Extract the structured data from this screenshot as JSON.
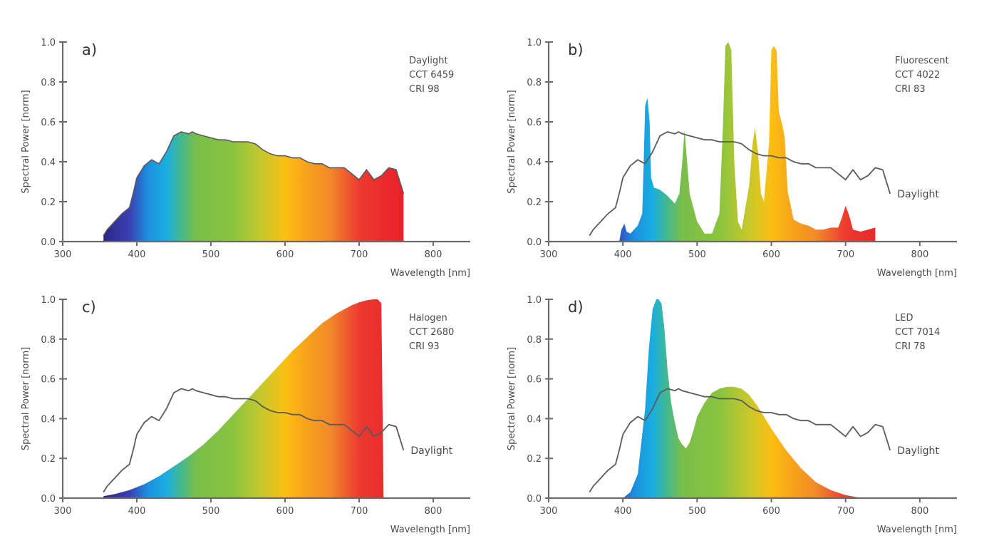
{
  "chart_data": [
    {
      "type": "area",
      "panel_label": "a)",
      "annotation": [
        "Daylight",
        "CCT 6459",
        "CRI 98"
      ],
      "xlabel": "Wavelength [nm]",
      "ylabel": "Spectral Power [norm]",
      "xlim": [
        300,
        850
      ],
      "ylim": [
        0,
        1
      ],
      "xticks": [
        "300",
        "400",
        "500",
        "600",
        "700",
        "800"
      ],
      "yticks": [
        "0.0",
        "0.2",
        "0.4",
        "0.6",
        "0.8",
        "1.0"
      ],
      "reference_label": "",
      "series": [
        {
          "name": "Daylight",
          "x": [
            355,
            360,
            370,
            380,
            390,
            395,
            400,
            410,
            420,
            430,
            440,
            450,
            460,
            470,
            475,
            480,
            490,
            500,
            510,
            520,
            530,
            540,
            550,
            560,
            570,
            580,
            590,
            600,
            610,
            620,
            630,
            640,
            650,
            660,
            670,
            680,
            690,
            700,
            710,
            720,
            730,
            740,
            750,
            755,
            760
          ],
          "y": [
            0.03,
            0.06,
            0.1,
            0.14,
            0.17,
            0.24,
            0.32,
            0.38,
            0.41,
            0.39,
            0.45,
            0.53,
            0.55,
            0.54,
            0.55,
            0.54,
            0.53,
            0.52,
            0.51,
            0.51,
            0.5,
            0.5,
            0.5,
            0.49,
            0.46,
            0.44,
            0.43,
            0.43,
            0.42,
            0.42,
            0.4,
            0.39,
            0.39,
            0.37,
            0.37,
            0.37,
            0.34,
            0.31,
            0.36,
            0.31,
            0.33,
            0.37,
            0.36,
            0.3,
            0.24
          ]
        }
      ]
    },
    {
      "type": "area",
      "panel_label": "b)",
      "annotation": [
        "Fluorescent",
        "CCT 4022",
        "CRI 83"
      ],
      "xlabel": "Wavelength [nm]",
      "ylabel": "Spectral Power [norm]",
      "xlim": [
        300,
        850
      ],
      "ylim": [
        0,
        1
      ],
      "xticks": [
        "300",
        "400",
        "500",
        "600",
        "700",
        "800"
      ],
      "yticks": [
        "0.0",
        "0.2",
        "0.4",
        "0.6",
        "0.8",
        "1.0"
      ],
      "reference_label": "Daylight",
      "series": [
        {
          "name": "Fluorescent",
          "x": [
            395,
            398,
            402,
            405,
            410,
            420,
            426,
            428,
            430,
            433,
            436,
            438,
            442,
            450,
            460,
            470,
            476,
            480,
            483,
            486,
            490,
            500,
            510,
            520,
            530,
            535,
            538,
            542,
            546,
            550,
            555,
            560,
            570,
            575,
            578,
            582,
            586,
            590,
            597,
            600,
            603,
            607,
            610,
            615,
            618,
            622,
            630,
            640,
            650,
            660,
            670,
            680,
            690,
            695,
            700,
            705,
            710,
            720,
            730,
            740
          ],
          "y": [
            0.0,
            0.06,
            0.09,
            0.05,
            0.04,
            0.08,
            0.14,
            0.4,
            0.68,
            0.72,
            0.6,
            0.32,
            0.27,
            0.26,
            0.23,
            0.19,
            0.24,
            0.4,
            0.56,
            0.42,
            0.24,
            0.1,
            0.04,
            0.04,
            0.14,
            0.6,
            0.98,
            1.0,
            0.96,
            0.4,
            0.1,
            0.06,
            0.28,
            0.5,
            0.57,
            0.45,
            0.24,
            0.2,
            0.5,
            0.96,
            0.98,
            0.96,
            0.65,
            0.58,
            0.52,
            0.25,
            0.11,
            0.09,
            0.08,
            0.06,
            0.06,
            0.07,
            0.07,
            0.12,
            0.18,
            0.13,
            0.06,
            0.05,
            0.06,
            0.07
          ]
        },
        {
          "name": "Daylight",
          "x": [
            355,
            360,
            370,
            380,
            390,
            395,
            400,
            410,
            420,
            430,
            440,
            450,
            460,
            470,
            475,
            480,
            490,
            500,
            510,
            520,
            530,
            540,
            550,
            560,
            570,
            580,
            590,
            600,
            610,
            620,
            630,
            640,
            650,
            660,
            670,
            680,
            690,
            700,
            710,
            720,
            730,
            740,
            750,
            755,
            760
          ],
          "y": [
            0.03,
            0.06,
            0.1,
            0.14,
            0.17,
            0.24,
            0.32,
            0.38,
            0.41,
            0.39,
            0.45,
            0.53,
            0.55,
            0.54,
            0.55,
            0.54,
            0.53,
            0.52,
            0.51,
            0.51,
            0.5,
            0.5,
            0.5,
            0.49,
            0.46,
            0.44,
            0.43,
            0.43,
            0.42,
            0.42,
            0.4,
            0.39,
            0.39,
            0.37,
            0.37,
            0.37,
            0.34,
            0.31,
            0.36,
            0.31,
            0.33,
            0.37,
            0.36,
            0.3,
            0.24
          ]
        }
      ]
    },
    {
      "type": "area",
      "panel_label": "c)",
      "annotation": [
        "Halogen",
        "CCT 2680",
        "CRI 93"
      ],
      "xlabel": "Wavelength [nm]",
      "ylabel": "Spectral Power [norm]",
      "xlim": [
        300,
        850
      ],
      "ylim": [
        0,
        1
      ],
      "xticks": [
        "300",
        "400",
        "500",
        "600",
        "700",
        "800"
      ],
      "yticks": [
        "0.0",
        "0.2",
        "0.4",
        "0.6",
        "0.8",
        "1.0"
      ],
      "reference_label": "Daylight",
      "series": [
        {
          "name": "Halogen",
          "x": [
            355,
            370,
            390,
            410,
            430,
            450,
            470,
            490,
            510,
            530,
            550,
            570,
            590,
            610,
            630,
            650,
            670,
            690,
            700,
            710,
            720,
            725,
            730,
            733
          ],
          "y": [
            0.01,
            0.02,
            0.04,
            0.07,
            0.11,
            0.16,
            0.21,
            0.27,
            0.34,
            0.42,
            0.5,
            0.58,
            0.66,
            0.74,
            0.81,
            0.88,
            0.93,
            0.97,
            0.985,
            0.995,
            1.0,
            1.0,
            0.98,
            0.0
          ]
        },
        {
          "name": "Daylight",
          "x": [
            355,
            360,
            370,
            380,
            390,
            395,
            400,
            410,
            420,
            430,
            440,
            450,
            460,
            470,
            475,
            480,
            490,
            500,
            510,
            520,
            530,
            540,
            550,
            560,
            570,
            580,
            590,
            600,
            610,
            620,
            630,
            640,
            650,
            660,
            670,
            680,
            690,
            700,
            710,
            720,
            730,
            740,
            750,
            755,
            760
          ],
          "y": [
            0.03,
            0.06,
            0.1,
            0.14,
            0.17,
            0.24,
            0.32,
            0.38,
            0.41,
            0.39,
            0.45,
            0.53,
            0.55,
            0.54,
            0.55,
            0.54,
            0.53,
            0.52,
            0.51,
            0.51,
            0.5,
            0.5,
            0.5,
            0.49,
            0.46,
            0.44,
            0.43,
            0.43,
            0.42,
            0.42,
            0.4,
            0.39,
            0.39,
            0.37,
            0.37,
            0.37,
            0.34,
            0.31,
            0.36,
            0.31,
            0.33,
            0.37,
            0.36,
            0.3,
            0.24
          ]
        }
      ]
    },
    {
      "type": "area",
      "panel_label": "d)",
      "annotation": [
        "LED",
        "CCT 7014",
        "CRI 78"
      ],
      "xlabel": "Wavelength [nm]",
      "ylabel": "Spectral Power [norm]",
      "xlim": [
        300,
        850
      ],
      "ylim": [
        0,
        1
      ],
      "xticks": [
        "300",
        "400",
        "500",
        "600",
        "700",
        "800"
      ],
      "yticks": [
        "0.0",
        "0.2",
        "0.4",
        "0.6",
        "0.8",
        "1.0"
      ],
      "reference_label": "Daylight",
      "series": [
        {
          "name": "LED",
          "x": [
            400,
            410,
            420,
            430,
            435,
            440,
            445,
            448,
            452,
            456,
            460,
            465,
            470,
            475,
            480,
            485,
            490,
            495,
            500,
            510,
            520,
            530,
            540,
            550,
            560,
            570,
            580,
            590,
            600,
            620,
            640,
            660,
            680,
            700,
            715,
            725
          ],
          "y": [
            0.0,
            0.03,
            0.12,
            0.45,
            0.75,
            0.95,
            1.0,
            1.0,
            0.98,
            0.85,
            0.65,
            0.48,
            0.38,
            0.3,
            0.27,
            0.25,
            0.28,
            0.34,
            0.41,
            0.48,
            0.53,
            0.55,
            0.56,
            0.56,
            0.55,
            0.52,
            0.47,
            0.41,
            0.35,
            0.24,
            0.15,
            0.08,
            0.04,
            0.015,
            0.005,
            0.0
          ]
        },
        {
          "name": "Daylight",
          "x": [
            355,
            360,
            370,
            380,
            390,
            395,
            400,
            410,
            420,
            430,
            440,
            450,
            460,
            470,
            475,
            480,
            490,
            500,
            510,
            520,
            530,
            540,
            550,
            560,
            570,
            580,
            590,
            600,
            610,
            620,
            630,
            640,
            650,
            660,
            670,
            680,
            690,
            700,
            710,
            720,
            730,
            740,
            750,
            755,
            760
          ],
          "y": [
            0.03,
            0.06,
            0.1,
            0.14,
            0.17,
            0.24,
            0.32,
            0.38,
            0.41,
            0.39,
            0.45,
            0.53,
            0.55,
            0.54,
            0.55,
            0.54,
            0.53,
            0.52,
            0.51,
            0.51,
            0.5,
            0.5,
            0.5,
            0.49,
            0.46,
            0.44,
            0.43,
            0.43,
            0.42,
            0.42,
            0.4,
            0.39,
            0.39,
            0.37,
            0.37,
            0.37,
            0.34,
            0.31,
            0.36,
            0.31,
            0.33,
            0.37,
            0.36,
            0.3,
            0.24
          ]
        }
      ]
    }
  ],
  "colors": {
    "axis": "#6a6a6a",
    "reference_line": "#5a5a5a",
    "text": "#4a4a4a",
    "spectrum_stops": [
      {
        "nm": 360,
        "color": "#2b2a8c"
      },
      {
        "nm": 390,
        "color": "#3b3fb3"
      },
      {
        "nm": 415,
        "color": "#1c8fe0"
      },
      {
        "nm": 440,
        "color": "#19aee0"
      },
      {
        "nm": 460,
        "color": "#45b88e"
      },
      {
        "nm": 480,
        "color": "#79be4a"
      },
      {
        "nm": 530,
        "color": "#8ac43f"
      },
      {
        "nm": 570,
        "color": "#c8c82b"
      },
      {
        "nm": 600,
        "color": "#fbbf12"
      },
      {
        "nm": 630,
        "color": "#f7a11b"
      },
      {
        "nm": 660,
        "color": "#f28a2a"
      },
      {
        "nm": 700,
        "color": "#ed3a30"
      },
      {
        "nm": 760,
        "color": "#e8202a"
      }
    ]
  }
}
